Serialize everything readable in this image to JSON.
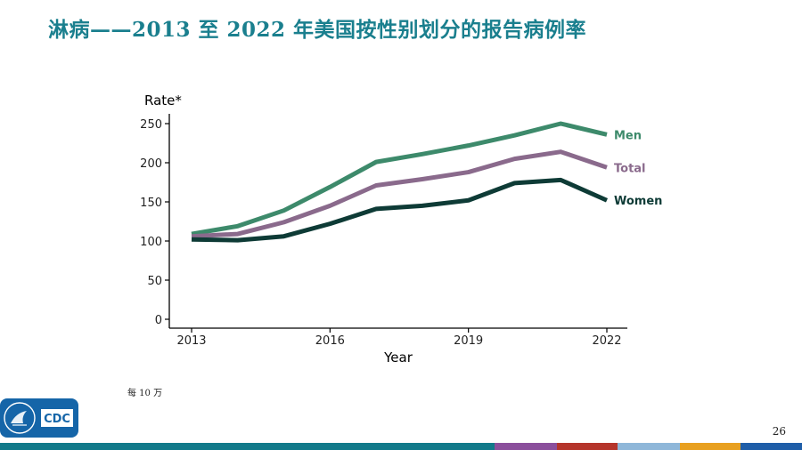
{
  "slide": {
    "title": "淋病——2013 至 2022 年美国按性别划分的报告病例率",
    "footnote": "每 10 万",
    "page_number": "26",
    "logo_text": "CDC"
  },
  "colors": {
    "title": "#1a7f8e",
    "men": "#3d8a6b",
    "total": "#8a6a8c",
    "women": "#0e3b36",
    "bottom_bar": [
      "#127a8a",
      "#8b4f9c",
      "#b5352b",
      "#8fb7d9",
      "#e8a020",
      "#1f5ea8"
    ]
  },
  "chart_data": {
    "type": "line",
    "title": "",
    "xlabel": "Year",
    "ylabel": "Rate*",
    "ylim": [
      0,
      260
    ],
    "yticks": [
      0,
      50,
      100,
      150,
      200,
      250
    ],
    "xticks": [
      2013,
      2016,
      2019,
      2022
    ],
    "x": [
      2013,
      2014,
      2015,
      2016,
      2017,
      2018,
      2019,
      2020,
      2021,
      2022
    ],
    "series": [
      {
        "name": "Men",
        "values": [
          109,
          119,
          139,
          169,
          201,
          211,
          222,
          235,
          250,
          236
        ]
      },
      {
        "name": "Total",
        "values": [
          106,
          109,
          124,
          145,
          171,
          179,
          188,
          205,
          214,
          194
        ]
      },
      {
        "name": "Women",
        "values": [
          102,
          101,
          106,
          122,
          141,
          145,
          152,
          174,
          178,
          152
        ]
      }
    ],
    "grid": false,
    "legend": "labels at line ends"
  }
}
